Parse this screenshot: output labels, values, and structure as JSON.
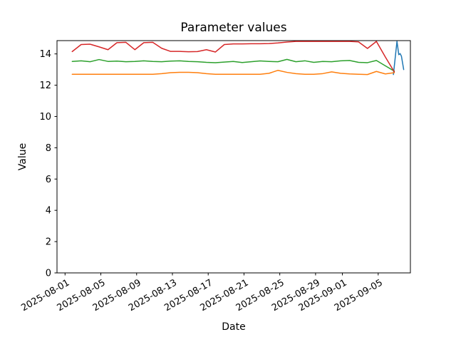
{
  "figure": {
    "background": "#ffffff",
    "frame_color": "#000000"
  },
  "chart_data": {
    "type": "line",
    "title": "Parameter values",
    "xlabel": "Date",
    "ylabel": "Value",
    "grid": false,
    "legend": false,
    "x_axis": {
      "unit": "days since 2025-08-01",
      "lim": [
        -0.9,
        38.6
      ],
      "ticks": [
        {
          "day": 0,
          "label": "2025-08-01"
        },
        {
          "day": 4,
          "label": "2025-08-05"
        },
        {
          "day": 8,
          "label": "2025-08-09"
        },
        {
          "day": 12,
          "label": "2025-08-13"
        },
        {
          "day": 16,
          "label": "2025-08-17"
        },
        {
          "day": 20,
          "label": "2025-08-21"
        },
        {
          "day": 24,
          "label": "2025-08-25"
        },
        {
          "day": 28,
          "label": "2025-08-29"
        },
        {
          "day": 31,
          "label": "2025-09-01"
        },
        {
          "day": 35,
          "label": "2025-09-05"
        }
      ],
      "tick_rotation_deg": 30
    },
    "y_axis": {
      "lim": [
        0,
        14.85
      ],
      "ticks": [
        0,
        2,
        4,
        6,
        8,
        10,
        12,
        14
      ]
    },
    "dates_daily": [
      "2025-08-01",
      "2025-08-02",
      "2025-08-03",
      "2025-08-04",
      "2025-08-05",
      "2025-08-06",
      "2025-08-07",
      "2025-08-08",
      "2025-08-09",
      "2025-08-10",
      "2025-08-11",
      "2025-08-12",
      "2025-08-13",
      "2025-08-14",
      "2025-08-15",
      "2025-08-16",
      "2025-08-17",
      "2025-08-18",
      "2025-08-19",
      "2025-08-20",
      "2025-08-21",
      "2025-08-22",
      "2025-08-23",
      "2025-08-24",
      "2025-08-25",
      "2025-08-26",
      "2025-08-27",
      "2025-08-28",
      "2025-08-29",
      "2025-08-30",
      "2025-08-31",
      "2025-09-01",
      "2025-09-02",
      "2025-09-03",
      "2025-09-04",
      "2025-09-05",
      "2025-09-06"
    ],
    "series": [
      {
        "name": "series-blue",
        "color": "#1f77b4",
        "x": [
          36.7,
          37.1,
          37.3,
          37.45,
          37.6,
          37.85
        ],
        "values": [
          12.68,
          14.8,
          13.95,
          14.02,
          13.85,
          13.0
        ]
      },
      {
        "name": "series-orange",
        "color": "#ff7f0e",
        "x0": 0.8,
        "dx": 1,
        "values": [
          12.7,
          12.7,
          12.7,
          12.7,
          12.7,
          12.7,
          12.7,
          12.7,
          12.7,
          12.7,
          12.74,
          12.8,
          12.82,
          12.82,
          12.8,
          12.74,
          12.7,
          12.7,
          12.7,
          12.7,
          12.7,
          12.7,
          12.76,
          12.95,
          12.82,
          12.74,
          12.7,
          12.7,
          12.74,
          12.85,
          12.76,
          12.72,
          12.7,
          12.68,
          12.88,
          12.72,
          12.8
        ]
      },
      {
        "name": "series-green",
        "color": "#2ca02c",
        "x0": 0.8,
        "dx": 1,
        "values": [
          13.52,
          13.56,
          13.5,
          13.64,
          13.52,
          13.54,
          13.5,
          13.52,
          13.56,
          13.52,
          13.5,
          13.54,
          13.56,
          13.52,
          13.5,
          13.46,
          13.44,
          13.48,
          13.52,
          13.45,
          13.5,
          13.55,
          13.52,
          13.5,
          13.65,
          13.5,
          13.56,
          13.46,
          13.52,
          13.5,
          13.56,
          13.58,
          13.46,
          13.44,
          13.58,
          13.24,
          12.9
        ]
      },
      {
        "name": "series-red",
        "color": "#d62728",
        "x0": 0.8,
        "dx": 1,
        "values": [
          14.15,
          14.6,
          14.62,
          14.45,
          14.27,
          14.72,
          14.74,
          14.27,
          14.72,
          14.74,
          14.36,
          14.16,
          14.16,
          14.14,
          14.15,
          14.27,
          14.12,
          14.6,
          14.64,
          14.64,
          14.65,
          14.65,
          14.66,
          14.7,
          14.76,
          14.8,
          14.8,
          14.8,
          14.8,
          14.8,
          14.8,
          14.8,
          14.77,
          14.35,
          14.8,
          13.8,
          12.85
        ]
      }
    ]
  }
}
